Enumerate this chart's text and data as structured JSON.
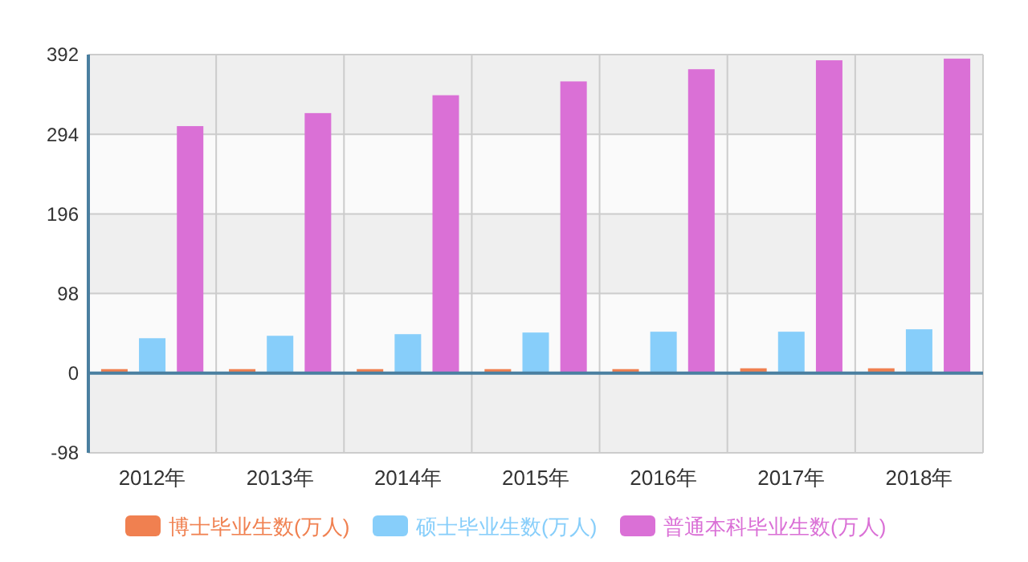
{
  "chart_data": {
    "type": "bar",
    "categories": [
      "2012年",
      "2013年",
      "2014年",
      "2015年",
      "2016年",
      "2017年",
      "2018年"
    ],
    "series": [
      {
        "name": "博士毕业生数(万人)",
        "color": "#f08050",
        "values": [
          5,
          5,
          5,
          5,
          5,
          6,
          6
        ]
      },
      {
        "name": "硕士毕业生数(万人)",
        "color": "#87cefa",
        "values": [
          43,
          46,
          48,
          50,
          51,
          51,
          54
        ]
      },
      {
        "name": "普通本科毕业生数(万人)",
        "color": "#da70d6",
        "values": [
          304,
          320,
          342,
          359,
          374,
          385,
          387
        ]
      }
    ],
    "ylim": [
      -98,
      392
    ],
    "yticks": [
      -98,
      0,
      98,
      196,
      294,
      392
    ],
    "ref_lines": [
      {
        "axis": "y",
        "value": 0,
        "color": "#4a7fa0"
      }
    ],
    "grid": true,
    "legend": "bottom"
  }
}
